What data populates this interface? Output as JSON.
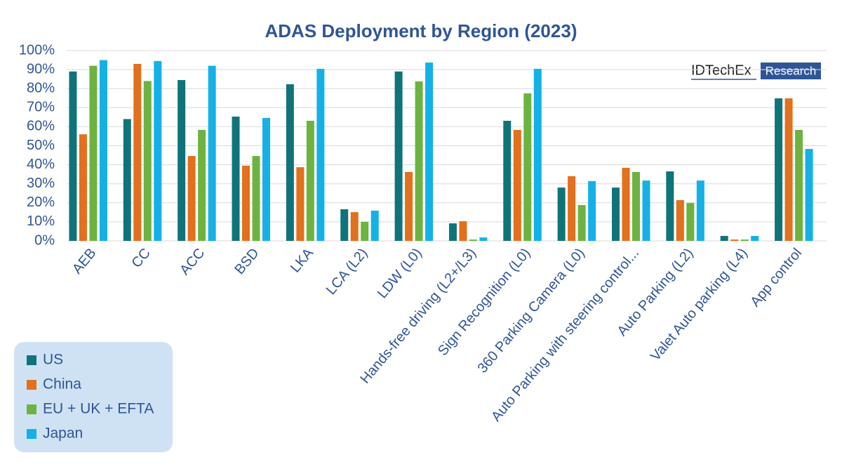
{
  "chart_data": {
    "type": "bar",
    "title": "ADAS Deployment by Region (2023)",
    "watermark": {
      "brand": "IDTechEx",
      "tag": "Research"
    },
    "categories": [
      "AEB",
      "CC",
      "ACC",
      "BSD",
      "LKA",
      "LCA (L2)",
      "LDW (L0)",
      "Hands-free driving (L2+/L3)",
      "Sign Recognition (L0)",
      "360 Parking Camera (L0)",
      "Auto Parking with steering control...",
      "Auto Parking (L2)",
      "Valet Auto parking (L4)",
      "App control"
    ],
    "series": [
      {
        "name": "US",
        "color": "#0f7479",
        "values": [
          89,
          64,
          84.5,
          65.3,
          82.3,
          16.6,
          89,
          9.2,
          63.1,
          28,
          28,
          36.5,
          2.6,
          74.9
        ]
      },
      {
        "name": "China",
        "color": "#e2701c",
        "values": [
          56,
          93,
          44.6,
          39.5,
          38.7,
          15.1,
          36.2,
          10.3,
          58.3,
          34,
          38.4,
          21.4,
          0.7,
          74.9
        ]
      },
      {
        "name": "EU + UK + EFTA",
        "color": "#6db33f",
        "values": [
          92,
          84,
          58.3,
          44.6,
          63.1,
          10,
          83.8,
          0.7,
          77.5,
          18.8,
          36.2,
          19.9,
          0.7,
          58.3
        ]
      },
      {
        "name": "Japan",
        "color": "#14b1e7",
        "values": [
          95,
          94.5,
          92,
          64.6,
          90.4,
          15.9,
          93.7,
          1.8,
          90.4,
          31.4,
          31.7,
          31.7,
          2.6,
          48.3
        ]
      }
    ],
    "ylim": [
      0,
      100
    ],
    "yticks": [
      {
        "value": 0,
        "label": "0%"
      },
      {
        "value": 10,
        "label": "10%"
      },
      {
        "value": 20,
        "label": "20%"
      },
      {
        "value": 30,
        "label": "30%"
      },
      {
        "value": 40,
        "label": "40%"
      },
      {
        "value": 50,
        "label": "50%"
      },
      {
        "value": 60,
        "label": "60%"
      },
      {
        "value": 70,
        "label": "70%"
      },
      {
        "value": 80,
        "label": "80%"
      },
      {
        "value": 90,
        "label": "90%"
      },
      {
        "value": 100,
        "label": "100%"
      }
    ],
    "grid": true,
    "legend": "bottom-left"
  }
}
